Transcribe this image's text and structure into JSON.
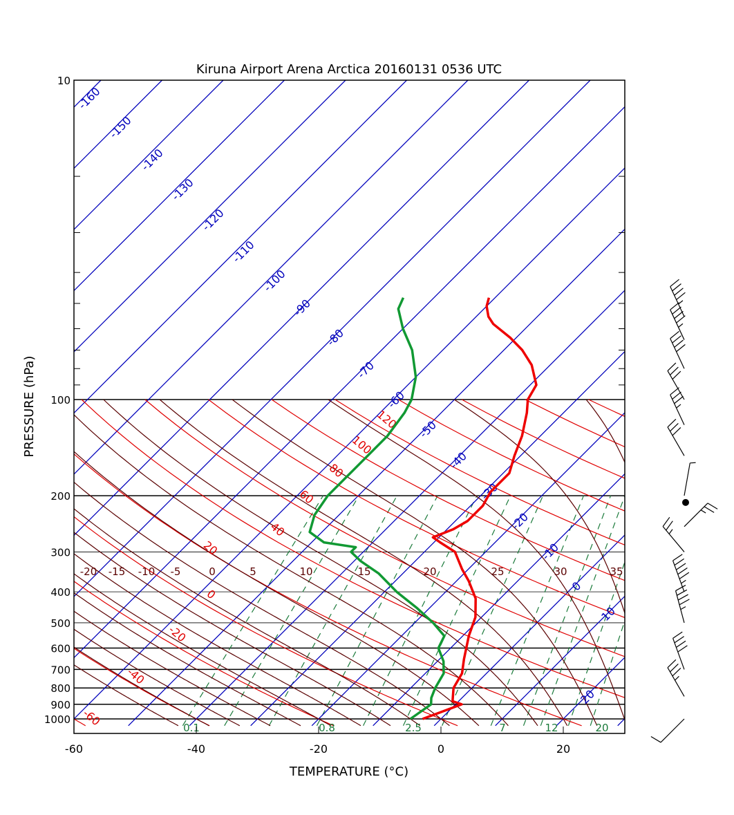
{
  "chart_data": {
    "type": "skew-t log-p sounding",
    "title": "Kiruna Airport Arena Arctica 20160131 0536 UTC",
    "xlabel": "TEMPERATURE (°C)",
    "ylabel": "PRESSURE (hPa)",
    "x_ticks": [
      -60,
      -40,
      -20,
      0,
      20
    ],
    "xlim": [
      -60,
      30
    ],
    "y_ticks_labeled": [
      10,
      100,
      200,
      300,
      400,
      500,
      600,
      700,
      800,
      900,
      1000
    ],
    "ylim": [
      1050,
      10
    ],
    "isotherm_labels": [
      "-160",
      "-150",
      "-140",
      "-130",
      "-120",
      "-110",
      "-100",
      "-90",
      "-80",
      "-70",
      "-60",
      "-50",
      "-40",
      "-30",
      "-20",
      "-10",
      "0",
      "10",
      "20"
    ],
    "dry_adiabat_labels": [
      "120",
      "100",
      "80",
      "60",
      "40",
      "20",
      "0",
      "-20",
      "-40",
      "-60"
    ],
    "moist_adiabat_labels": [
      "-20",
      "-15",
      "-10",
      "-5",
      "0",
      "5",
      "10",
      "15",
      "20",
      "25",
      "30",
      "35"
    ],
    "mixing_ratio_labels": [
      "0.1",
      "0.8",
      "2.5",
      "7",
      "12",
      "20"
    ],
    "series": [
      {
        "name": "Temperature",
        "color": "#ee0000",
        "points": [
          {
            "p": 1000,
            "t": -3
          },
          {
            "p": 900,
            "t": 1
          },
          {
            "p": 880,
            "t": -1
          },
          {
            "p": 800,
            "t": -3
          },
          {
            "p": 720,
            "t": -4
          },
          {
            "p": 650,
            "t": -6
          },
          {
            "p": 550,
            "t": -9
          },
          {
            "p": 480,
            "t": -11
          },
          {
            "p": 420,
            "t": -14
          },
          {
            "p": 370,
            "t": -18
          },
          {
            "p": 340,
            "t": -21
          },
          {
            "p": 300,
            "t": -25
          },
          {
            "p": 280,
            "t": -29
          },
          {
            "p": 270,
            "t": -31
          },
          {
            "p": 255,
            "t": -29
          },
          {
            "p": 240,
            "t": -28
          },
          {
            "p": 215,
            "t": -28
          },
          {
            "p": 195,
            "t": -29
          },
          {
            "p": 170,
            "t": -29
          },
          {
            "p": 150,
            "t": -31
          },
          {
            "p": 130,
            "t": -33
          },
          {
            "p": 110,
            "t": -36
          },
          {
            "p": 100,
            "t": -38
          },
          {
            "p": 90,
            "t": -39
          },
          {
            "p": 78,
            "t": -43
          },
          {
            "p": 70,
            "t": -47
          },
          {
            "p": 64,
            "t": -51
          },
          {
            "p": 58,
            "t": -56
          },
          {
            "p": 55,
            "t": -58
          },
          {
            "p": 51,
            "t": -60
          },
          {
            "p": 48,
            "t": -61
          }
        ]
      },
      {
        "name": "Dew point",
        "color": "#119933",
        "points": [
          {
            "p": 1000,
            "t": -5
          },
          {
            "p": 900,
            "t": -4
          },
          {
            "p": 860,
            "t": -5
          },
          {
            "p": 800,
            "t": -6
          },
          {
            "p": 720,
            "t": -7
          },
          {
            "p": 660,
            "t": -9
          },
          {
            "p": 600,
            "t": -12
          },
          {
            "p": 550,
            "t": -13
          },
          {
            "p": 500,
            "t": -17
          },
          {
            "p": 450,
            "t": -22
          },
          {
            "p": 400,
            "t": -28
          },
          {
            "p": 350,
            "t": -34
          },
          {
            "p": 320,
            "t": -39
          },
          {
            "p": 300,
            "t": -42
          },
          {
            "p": 290,
            "t": -42
          },
          {
            "p": 280,
            "t": -48
          },
          {
            "p": 260,
            "t": -52
          },
          {
            "p": 230,
            "t": -54
          },
          {
            "p": 200,
            "t": -55
          },
          {
            "p": 170,
            "t": -55
          },
          {
            "p": 150,
            "t": -55
          },
          {
            "p": 130,
            "t": -55
          },
          {
            "p": 110,
            "t": -56
          },
          {
            "p": 100,
            "t": -57
          },
          {
            "p": 85,
            "t": -60
          },
          {
            "p": 70,
            "t": -65
          },
          {
            "p": 60,
            "t": -70
          },
          {
            "p": 52,
            "t": -74
          },
          {
            "p": 48,
            "t": -75
          }
        ]
      }
    ],
    "wind_profile": [
      {
        "p": 1000,
        "dir": 225,
        "spd": 10
      },
      {
        "p": 850,
        "dir": 330,
        "spd": 35
      },
      {
        "p": 700,
        "dir": 340,
        "spd": 40
      },
      {
        "p": 500,
        "dir": 345,
        "spd": 45
      },
      {
        "p": 400,
        "dir": 340,
        "spd": 55
      },
      {
        "p": 300,
        "dir": 320,
        "spd": 25
      },
      {
        "p": 250,
        "dir": 45,
        "spd": 25
      },
      {
        "p": 200,
        "dir": 10,
        "spd": 5
      },
      {
        "p": 150,
        "dir": 330,
        "spd": 30
      },
      {
        "p": 120,
        "dir": 335,
        "spd": 35
      },
      {
        "p": 100,
        "dir": 330,
        "spd": 30
      },
      {
        "p": 80,
        "dir": 335,
        "spd": 40
      },
      {
        "p": 65,
        "dir": 335,
        "spd": 45
      },
      {
        "p": 55,
        "dir": 335,
        "spd": 45
      }
    ]
  }
}
